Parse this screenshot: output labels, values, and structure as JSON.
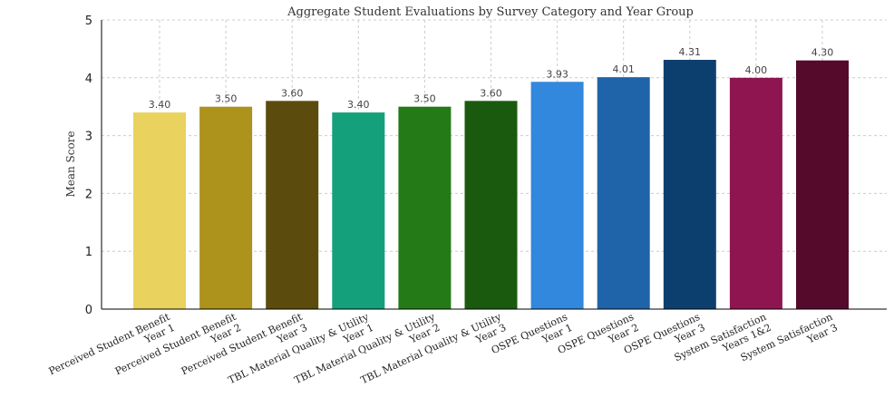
{
  "chart_data": {
    "type": "bar",
    "title": "Aggregate Student Evaluations by Survey Category and Year Group",
    "xlabel": "",
    "ylabel": "Mean Score",
    "ylim": [
      0,
      5
    ],
    "yticks": [
      "0",
      "1",
      "2",
      "3",
      "4",
      "5"
    ],
    "grid": true,
    "categories": [
      [
        "Perceived Student Benefit",
        "Year 1"
      ],
      [
        "Perceived Student Benefit",
        "Year 2"
      ],
      [
        "Perceived Student Benefit",
        "Year 3"
      ],
      [
        "TBL Material Quality & Utility",
        "Year 1"
      ],
      [
        "TBL Material Quality & Utility",
        "Year 2"
      ],
      [
        "TBL Material Quality & Utility",
        "Year 3"
      ],
      [
        "OSPE Questions",
        "Year 1"
      ],
      [
        "OSPE Questions",
        "Year 2"
      ],
      [
        "OSPE Questions",
        "Year 3"
      ],
      [
        "System Satisfaction",
        "Years 1&2"
      ],
      [
        "System Satisfaction",
        "Year 3"
      ]
    ],
    "values": [
      3.4,
      3.5,
      3.6,
      3.4,
      3.5,
      3.6,
      3.93,
      4.01,
      4.31,
      4.0,
      4.3
    ],
    "value_labels": [
      "3.40",
      "3.50",
      "3.60",
      "3.40",
      "3.50",
      "3.60",
      "3.93",
      "4.01",
      "4.31",
      "4.00",
      "4.30"
    ],
    "colors": [
      "#E9D25D",
      "#AD921B",
      "#5B4C0E",
      "#14A07A",
      "#257A18",
      "#1A5A0E",
      "#3288DC",
      "#1F63A8",
      "#0D3F6E",
      "#8E1550",
      "#550A2B"
    ]
  }
}
